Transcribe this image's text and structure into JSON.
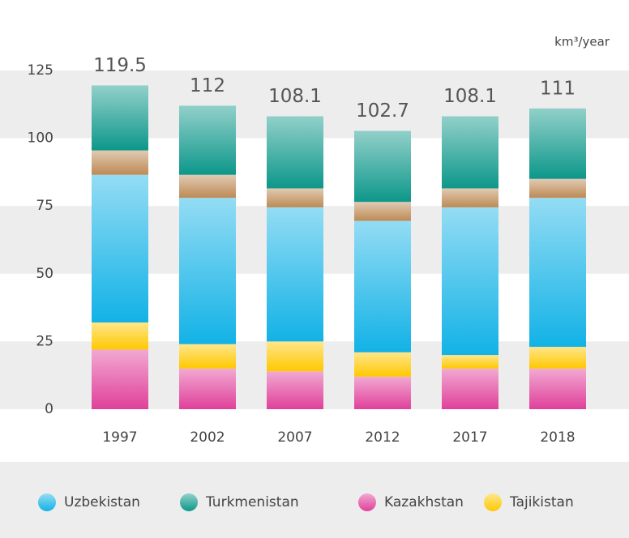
{
  "chart_data": {
    "type": "bar",
    "stacked": true,
    "unit": "km³/year",
    "categories": [
      "1997",
      "2002",
      "2007",
      "2012",
      "2017",
      "2018"
    ],
    "series": [
      {
        "name": "Kazakhstan",
        "color": "#e0409a",
        "values": [
          22,
          15,
          14,
          12,
          15,
          15
        ]
      },
      {
        "name": "Tajikistan",
        "color": "#ffc800",
        "values": [
          10,
          9,
          11,
          9,
          5,
          8
        ]
      },
      {
        "name": "Uzbekistan",
        "color": "#12b2e6",
        "values": [
          54.5,
          54,
          49.5,
          48.5,
          54.5,
          55
        ]
      },
      {
        "color": "#bd8a55",
        "values": [
          9,
          8.5,
          7,
          7,
          7,
          7
        ]
      },
      {
        "name": "Turkmenistan",
        "color": "#0d978a",
        "values": [
          24,
          25.5,
          26.6,
          26.2,
          26.6,
          26
        ]
      }
    ],
    "totals": [
      119.5,
      112,
      108.1,
      102.7,
      108.1,
      111
    ],
    "legend_order": [
      2,
      4,
      0,
      1
    ],
    "ylim": [
      0,
      125
    ],
    "yticks": [
      0,
      25,
      50,
      75,
      100,
      125
    ],
    "grid": "bands"
  }
}
